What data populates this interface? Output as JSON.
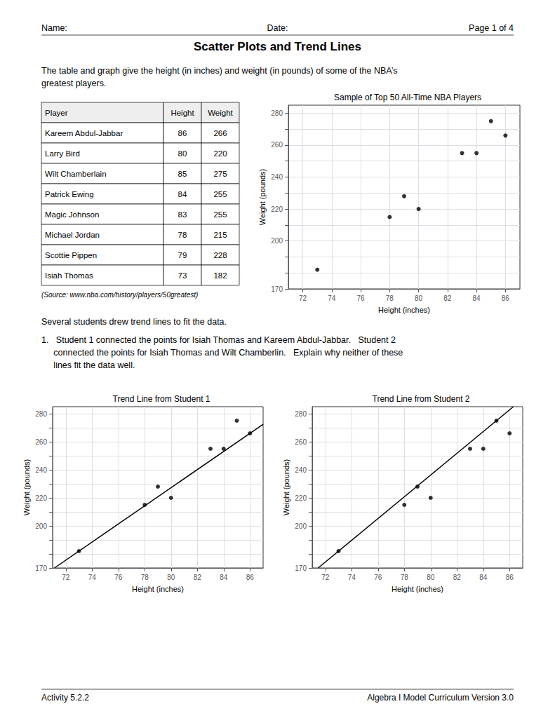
{
  "header_left": "Name:",
  "header_center": "Date:",
  "header_right": "Page 1 of 4",
  "title": "Scatter Plots and Trend Lines",
  "intro_text": "The table and graph give the height (in inches) and weight (in pounds) of some of the NBA’s\ngreatest players.",
  "table": {
    "headers": [
      "Player",
      "Height",
      "Weight"
    ],
    "rows": [
      [
        "Kareem Abdul-Jabbar",
        86,
        266
      ],
      [
        "Larry Bird",
        80,
        220
      ],
      [
        "Wilt Chamberlain",
        85,
        275
      ],
      [
        "Patrick Ewing",
        84,
        255
      ],
      [
        "Magic Johnson",
        83,
        255
      ],
      [
        "Michael Jordan",
        78,
        215
      ],
      [
        "Scottie Pippen",
        79,
        228
      ],
      [
        "Isiah Thomas",
        73,
        182
      ]
    ]
  },
  "source_text": "(Source: www.nba.com/history/players/50greatest)",
  "several_text": "Several students drew trend lines to fit the data.",
  "question1_text": "1.   Student 1 connected the points for Isiah Thomas and Kareem Abdul-Jabbar.   Student 2\n     connected the points for Isiah Thomas and Wilt Chamberlin.   Explain why neither of these\n     lines fit the data well.",
  "footer_left": "Activity 5.2.2",
  "footer_right": "Algebra I Model Curriculum Version 3.0",
  "chart_data": [
    {
      "type": "scatter",
      "title": "Sample of Top 50 All-Time NBA Players",
      "xlabel": "Height (inches)",
      "ylabel": "Weight (pounds)",
      "xlim": [
        71,
        87
      ],
      "ylim": [
        170,
        285
      ],
      "xticks": [
        72,
        74,
        76,
        78,
        80,
        82,
        84,
        86
      ],
      "yticks": [
        170,
        {
          "value": 180,
          "label": ""
        },
        {
          "value": 190,
          "label": ""
        },
        200,
        {
          "value": 210,
          "label": ""
        },
        220,
        {
          "value": 230,
          "label": ""
        },
        240,
        {
          "value": 250,
          "label": ""
        },
        260,
        {
          "value": 270,
          "label": ""
        },
        280
      ],
      "grid": true,
      "series": [
        {
          "type": "scatter",
          "color": "#000000",
          "x": [
            86,
            80,
            85,
            84,
            83,
            78,
            79,
            73
          ],
          "values": [
            266,
            220,
            275,
            255,
            255,
            215,
            228,
            182
          ]
        }
      ]
    },
    {
      "type": "scatter",
      "title": "Trend Line from Student 1",
      "xlabel": "Height (inches)",
      "ylabel": "Weight (pounds)",
      "xlim": [
        71,
        87
      ],
      "ylim": [
        170,
        285
      ],
      "xticks": [
        72,
        74,
        76,
        78,
        80,
        82,
        84,
        86
      ],
      "yticks": [
        170,
        {
          "value": 180,
          "label": ""
        },
        {
          "value": 190,
          "label": ""
        },
        200,
        {
          "value": 210,
          "label": ""
        },
        220,
        {
          "value": 230,
          "label": ""
        },
        240,
        {
          "value": 250,
          "label": ""
        },
        260,
        {
          "value": 270,
          "label": ""
        },
        280
      ],
      "grid": true,
      "series": [
        {
          "type": "scatter",
          "color": "#000000",
          "x": [
            86,
            80,
            85,
            84,
            83,
            78,
            79,
            73
          ],
          "values": [
            266,
            220,
            275,
            255,
            255,
            215,
            228,
            182
          ]
        },
        {
          "type": "line",
          "color": "#000000",
          "x": [
            71.142857,
            87
          ],
          "values": [
            170,
            272.461538
          ]
        }
      ]
    },
    {
      "type": "scatter",
      "title": "Trend Line from Student 2",
      "xlabel": "Height (inches)",
      "ylabel": "Weight (pounds)",
      "xlim": [
        71,
        87
      ],
      "ylim": [
        170,
        285
      ],
      "xticks": [
        72,
        74,
        76,
        78,
        80,
        82,
        84,
        86
      ],
      "yticks": [
        170,
        {
          "value": 180,
          "label": ""
        },
        {
          "value": 190,
          "label": ""
        },
        200,
        {
          "value": 210,
          "label": ""
        },
        220,
        {
          "value": 230,
          "label": ""
        },
        240,
        {
          "value": 250,
          "label": ""
        },
        260,
        {
          "value": 270,
          "label": ""
        },
        280
      ],
      "grid": true,
      "series": [
        {
          "type": "scatter",
          "color": "#000000",
          "x": [
            86,
            80,
            85,
            84,
            83,
            78,
            79,
            73
          ],
          "values": [
            266,
            220,
            275,
            255,
            255,
            215,
            228,
            182
          ]
        },
        {
          "type": "line",
          "color": "#000000",
          "x": [
            71.451613,
            86.290323
          ],
          "values": [
            170,
            285
          ]
        }
      ]
    }
  ]
}
